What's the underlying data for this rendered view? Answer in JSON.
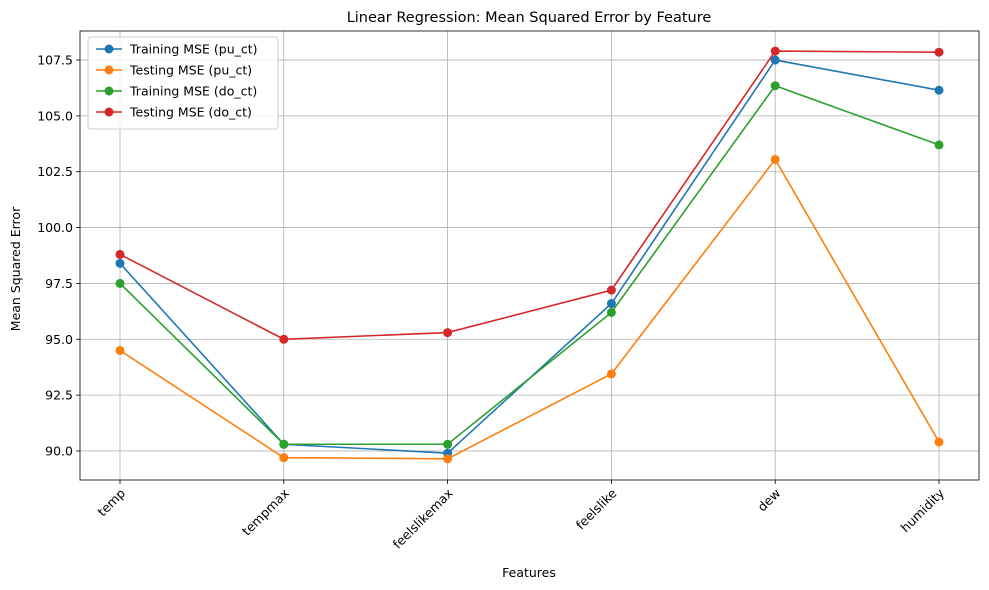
{
  "chart_data": {
    "type": "line",
    "title": "Linear Regression: Mean Squared Error by Feature",
    "xlabel": "Features",
    "ylabel": "Mean Squared Error",
    "categories": [
      "temp",
      "tempmax",
      "feelslikemax",
      "feelslike",
      "dew",
      "humidity"
    ],
    "ylim": [
      88.7,
      108.8
    ],
    "yticks": [
      "90.0",
      "92.5",
      "95.0",
      "97.5",
      "100.0",
      "102.5",
      "105.0",
      "107.5"
    ],
    "grid": true,
    "legend_position": "top-left",
    "series": [
      {
        "name": "Training MSE (pu_ct)",
        "color": "#1f77b4",
        "values": [
          98.4,
          90.3,
          89.9,
          96.6,
          107.5,
          106.15
        ]
      },
      {
        "name": "Testing MSE (pu_ct)",
        "color": "#ff7f0e",
        "values": [
          94.5,
          89.7,
          89.65,
          93.45,
          103.05,
          90.4
        ]
      },
      {
        "name": "Training MSE (do_ct)",
        "color": "#2ca02c",
        "values": [
          97.5,
          90.3,
          90.3,
          96.2,
          106.35,
          103.7
        ]
      },
      {
        "name": "Testing MSE (do_ct)",
        "color": "#d62728",
        "values": [
          98.8,
          95.0,
          95.3,
          97.2,
          107.9,
          107.85
        ]
      }
    ]
  }
}
